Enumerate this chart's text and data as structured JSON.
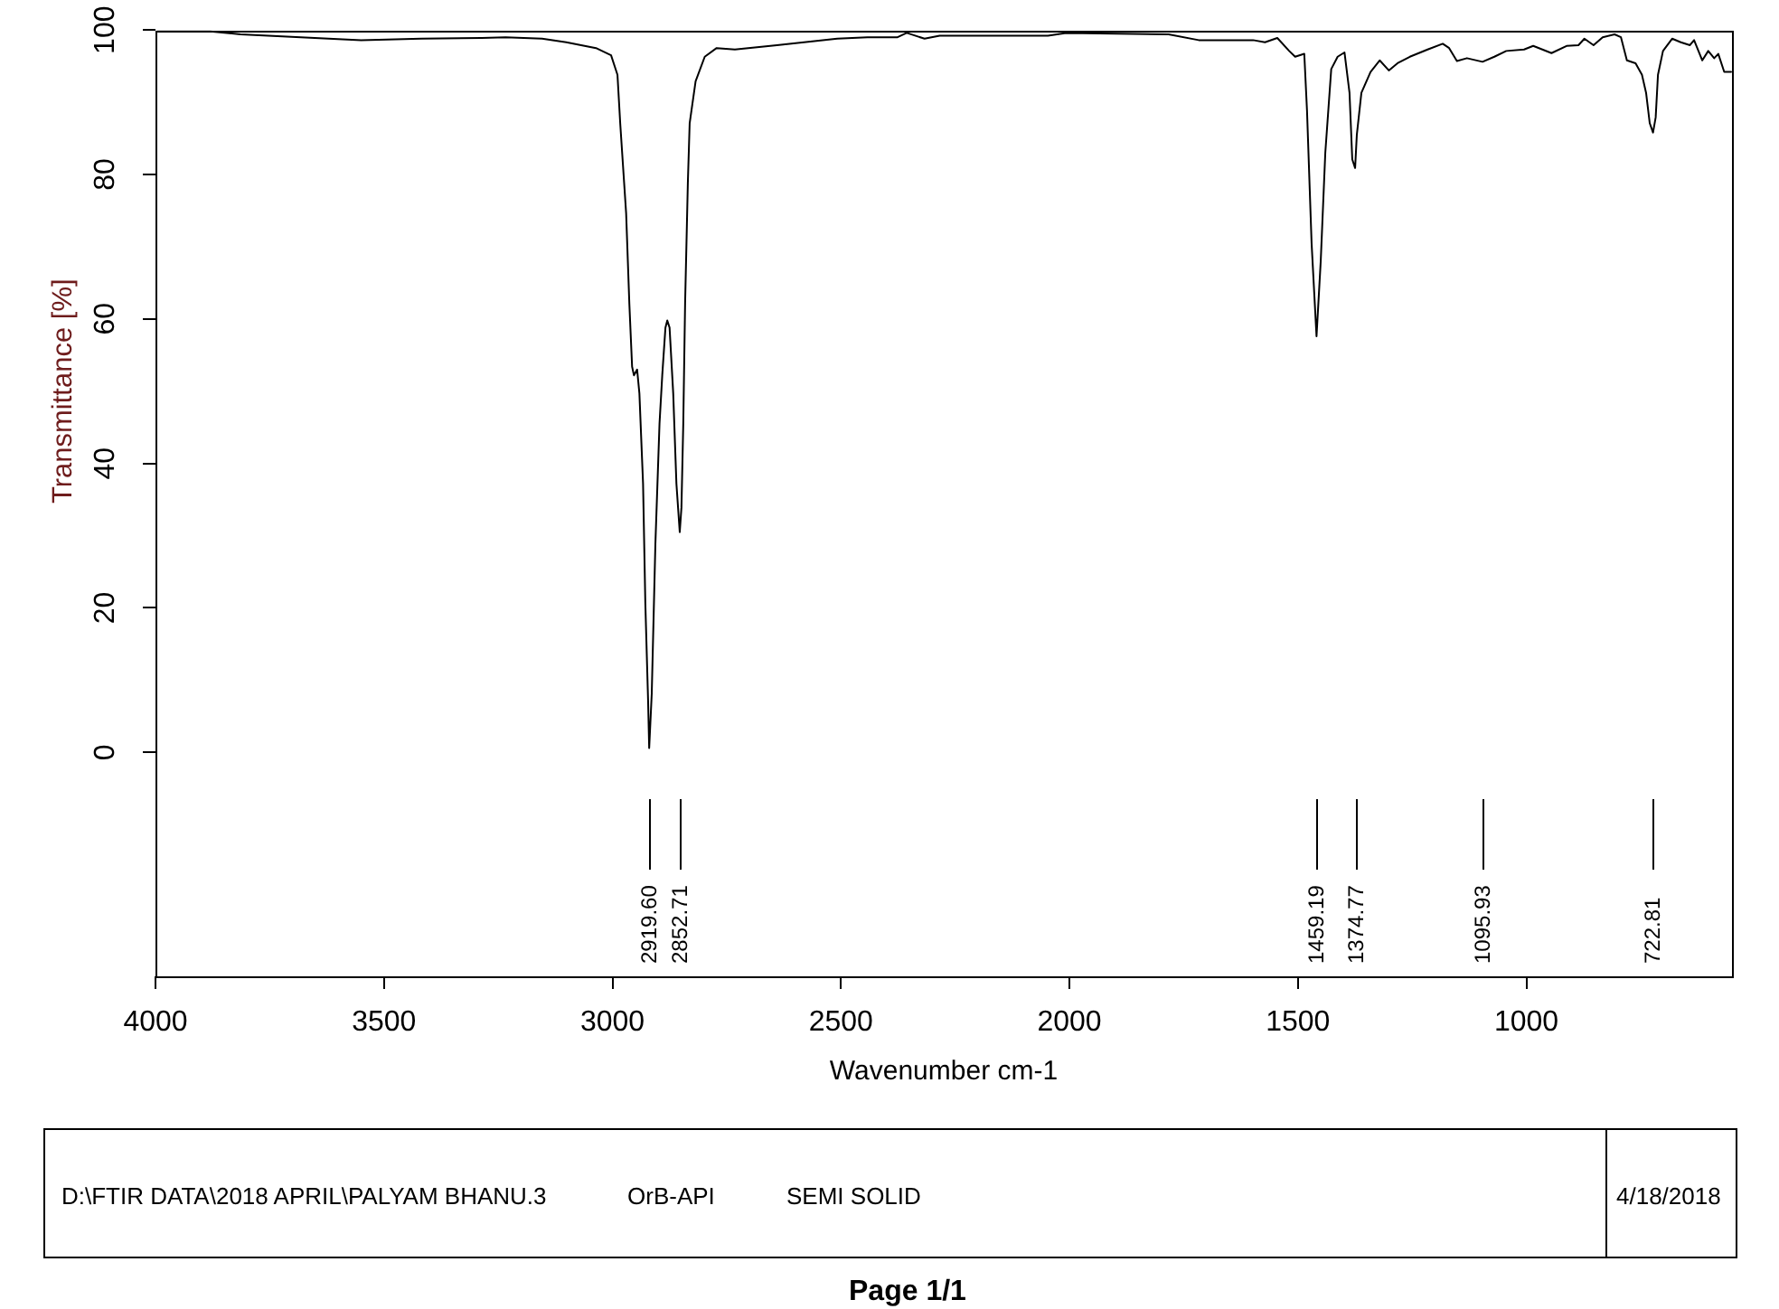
{
  "chart_data": {
    "type": "line",
    "xlabel": "Wavenumber cm-1",
    "ylabel": "Transmittance [%]",
    "x": [
      3996,
      3880,
      3814,
      3682,
      3550,
      3418,
      3286,
      3234,
      3154,
      3101,
      3036,
      3003,
      2989,
      2983,
      2970,
      2963,
      2957,
      2953,
      2946,
      2941,
      2933,
      2928,
      2922,
      2919.6,
      2914,
      2906,
      2897,
      2891,
      2884,
      2880,
      2875,
      2867,
      2860,
      2852.71,
      2849,
      2845,
      2841,
      2835,
      2831,
      2818,
      2798,
      2772,
      2732,
      2640,
      2508,
      2442,
      2376,
      2356,
      2317,
      2284,
      2047,
      2007,
      1783,
      1717,
      1651,
      1598,
      1572,
      1545,
      1519,
      1506,
      1486,
      1480,
      1470,
      1459.19,
      1450,
      1440,
      1427,
      1413,
      1398,
      1387,
      1381,
      1374.77,
      1371,
      1361,
      1341,
      1321,
      1301,
      1282,
      1255,
      1216,
      1183,
      1169,
      1152,
      1130,
      1095.93,
      1070,
      1044,
      1005,
      985,
      945,
      912,
      886,
      873,
      853,
      833,
      807,
      793,
      780,
      761,
      747,
      738,
      730,
      722.81,
      717,
      712,
      701,
      681,
      662,
      642,
      633,
      615,
      602,
      589,
      580,
      567,
      552
    ],
    "values": [
      99.8,
      99.8,
      99.4,
      99.0,
      98.6,
      98.8,
      98.9,
      99.0,
      98.8,
      98.3,
      97.5,
      96.5,
      93.8,
      87.1,
      74.6,
      62.1,
      53.4,
      52.2,
      53.0,
      49.7,
      37.2,
      20.6,
      7.2,
      0.6,
      8.1,
      28.9,
      45.5,
      52.2,
      58.8,
      59.8,
      58.8,
      49.7,
      37.2,
      30.5,
      33.9,
      45.5,
      62.1,
      78.8,
      87.1,
      92.9,
      96.3,
      97.5,
      97.3,
      97.9,
      98.8,
      99.0,
      99.0,
      99.6,
      98.8,
      99.2,
      99.2,
      99.6,
      99.4,
      98.6,
      98.6,
      98.6,
      98.3,
      98.9,
      97.1,
      96.3,
      96.7,
      88.8,
      70.5,
      57.6,
      68.0,
      83.0,
      94.6,
      96.3,
      96.9,
      91.3,
      82.1,
      80.9,
      85.5,
      91.3,
      94.2,
      95.8,
      94.4,
      95.4,
      96.3,
      97.3,
      98.1,
      97.5,
      95.7,
      96.1,
      95.6,
      96.3,
      97.1,
      97.3,
      97.8,
      96.8,
      97.8,
      97.9,
      98.8,
      97.9,
      99.0,
      99.4,
      99.0,
      95.8,
      95.4,
      93.8,
      91.3,
      87.1,
      85.8,
      87.9,
      93.8,
      97.1,
      98.8,
      98.3,
      97.9,
      98.6,
      95.8,
      97.1,
      96.1,
      96.7,
      94.2,
      94.2
    ],
    "color": "#000000",
    "xlim": [
      4000,
      550
    ],
    "xticks": [
      4000,
      3500,
      3000,
      2500,
      2000,
      1500,
      1000
    ],
    "ylim": [
      -31,
      100
    ],
    "yticks": [
      0,
      20,
      40,
      60,
      80,
      100
    ],
    "marker": "none",
    "line_style": "solid",
    "ref_lines": [
      {
        "axis": "x",
        "value": 2919.6,
        "label": "2919.60"
      },
      {
        "axis": "x",
        "value": 2852.71,
        "label": "2852.71"
      },
      {
        "axis": "x",
        "value": 1459.19,
        "label": "1459.19"
      },
      {
        "axis": "x",
        "value": 1374.77,
        "label": "1374.77"
      },
      {
        "axis": "x",
        "value": 1095.93,
        "label": "1095.93"
      },
      {
        "axis": "x",
        "value": 722.81,
        "label": "722.81"
      }
    ],
    "annotations": [
      "D:\\FTIR DATA\\2018 APRIL\\PALYAM BHANU.3",
      "OrB-API",
      "SEMI SOLID",
      "4/18/2018",
      "Page 1/1"
    ]
  }
}
